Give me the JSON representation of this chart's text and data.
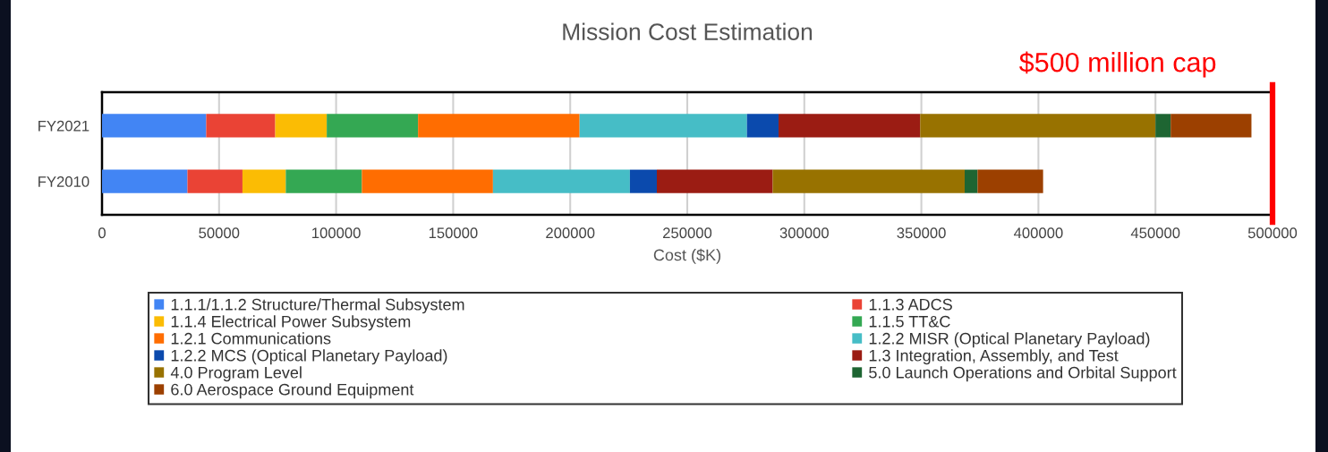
{
  "chart_data": {
    "type": "bar",
    "orientation": "horizontal",
    "stacked": true,
    "title": "Mission Cost Estimation",
    "xlabel": "Cost ($K)",
    "categories": [
      "FY2021",
      "FY2010"
    ],
    "series": [
      {
        "name": "1.1.1/1.1.2 Structure/Thermal Subsystem",
        "color": "#4285f4",
        "values": [
          44500,
          36500
        ]
      },
      {
        "name": "1.1.3 ADCS",
        "color": "#ea4335",
        "values": [
          29500,
          23500
        ]
      },
      {
        "name": "1.1.4 Electrical Power Subsystem",
        "color": "#fbbc04",
        "values": [
          22000,
          18500
        ]
      },
      {
        "name": "1.1.5 TT&C",
        "color": "#34a853",
        "values": [
          39000,
          32500
        ]
      },
      {
        "name": "1.2.1 Communications",
        "color": "#ff6d01",
        "values": [
          69000,
          56000
        ]
      },
      {
        "name": "1.2.2 MISR (Optical Planetary Payload)",
        "color": "#46bdc6",
        "values": [
          71500,
          58500
        ]
      },
      {
        "name": "1.2.2 MCS (Optical Planetary Payload)",
        "color": "#0b4aad",
        "values": [
          13500,
          11500
        ]
      },
      {
        "name": "1.3 Integration, Assembly, and Test",
        "color": "#9b1c13",
        "values": [
          60500,
          49500
        ]
      },
      {
        "name": "4.0 Program Level",
        "color": "#987200",
        "values": [
          100500,
          82000
        ]
      },
      {
        "name": "5.0 Launch Operations and Orbital Support",
        "color": "#1e6532",
        "values": [
          6500,
          5500
        ]
      },
      {
        "name": "6.0 Aerospace Ground Equipment",
        "color": "#9c4000",
        "values": [
          34500,
          28000
        ]
      }
    ],
    "xlim": [
      0,
      500000
    ],
    "xticks": [
      0,
      50000,
      100000,
      150000,
      200000,
      250000,
      300000,
      350000,
      400000,
      450000,
      500000
    ],
    "grid": "x",
    "legend": "bottom",
    "ref_lines": [
      {
        "axis": "x",
        "value": 500000,
        "label": "$500 million cap",
        "color": "#ff0000"
      }
    ]
  }
}
